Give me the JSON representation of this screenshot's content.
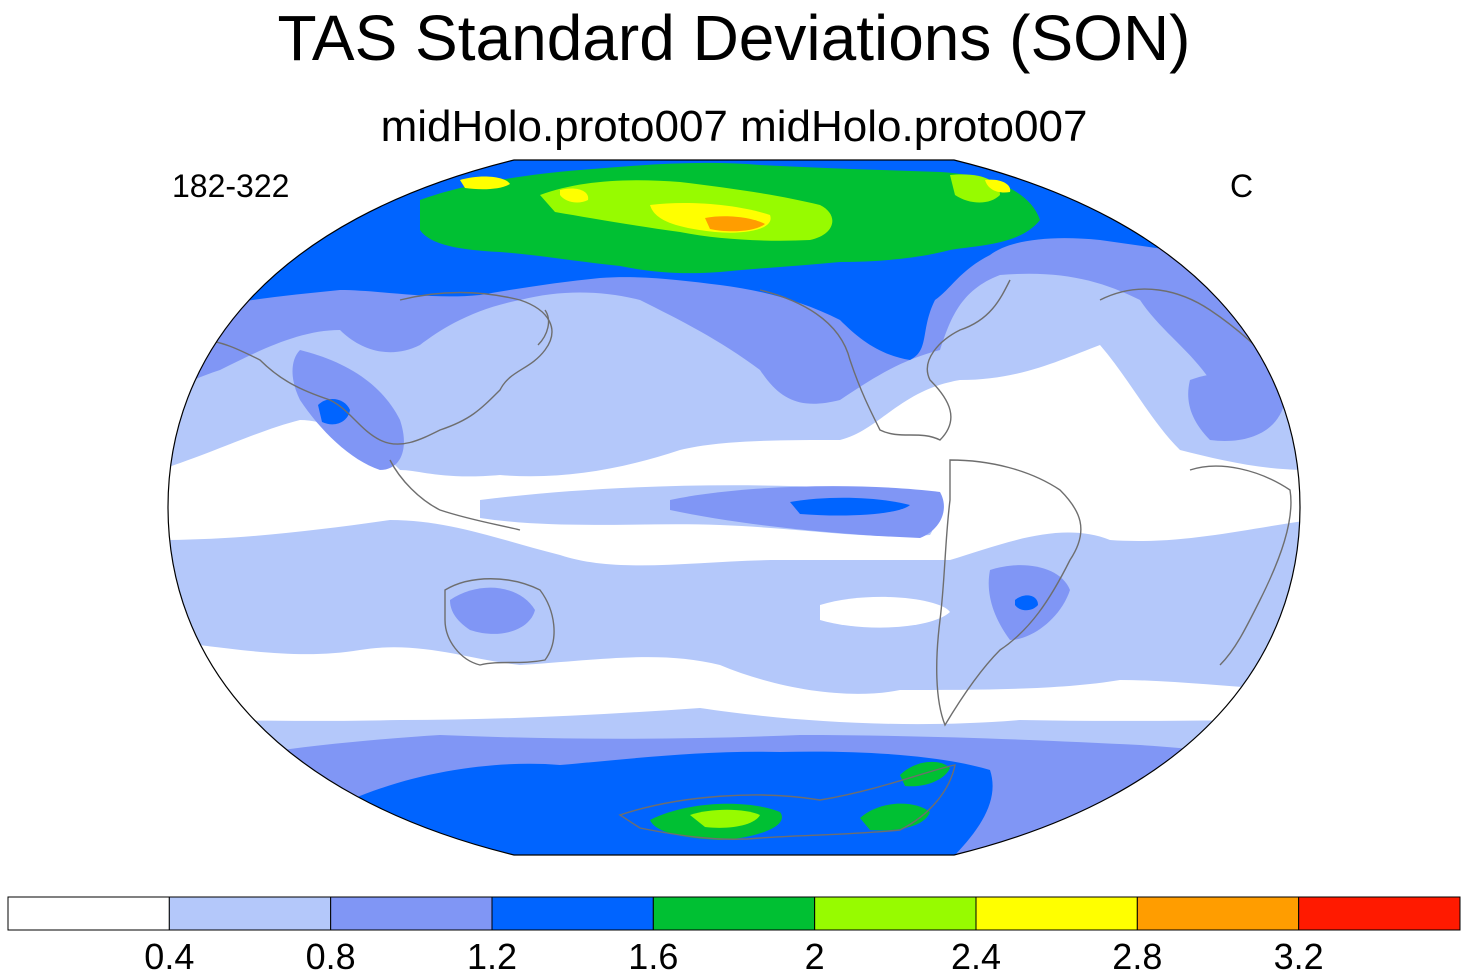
{
  "header": {
    "title": "TAS Standard Deviations (SON)",
    "subtitle": "midHolo.proto007  midHolo.proto007",
    "left_label": "182-322",
    "right_label": "C"
  },
  "map": {
    "projection": "robinson",
    "center": "pacific",
    "variable": "TAS standard deviation",
    "coastlines": true
  },
  "colorbar": {
    "colors": [
      "#ffffff",
      "#b4c8fa",
      "#8096f5",
      "#0064ff",
      "#00c033",
      "#97fb00",
      "#ffff00",
      "#ff9d00",
      "#ff1a00"
    ],
    "tick_labels": [
      "0.4",
      "0.8",
      "1.2",
      "1.6",
      "2",
      "2.4",
      "2.8",
      "3.2"
    ]
  }
}
